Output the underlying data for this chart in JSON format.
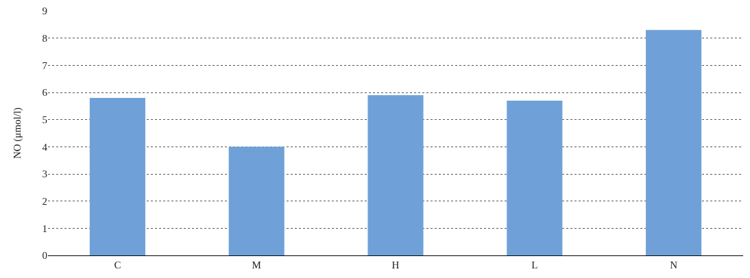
{
  "chart_data": {
    "type": "bar",
    "ylabel": "NO (μmol/l)",
    "categories": [
      "C",
      "M",
      "H",
      "L",
      "N"
    ],
    "values": [
      5.8,
      4.0,
      5.9,
      5.7,
      8.3
    ],
    "color": "#6fa1d8",
    "ylim": [
      0,
      9
    ],
    "yticks": [
      0,
      1,
      2,
      3,
      4,
      5,
      6,
      7,
      8,
      9
    ],
    "grid": "y",
    "legend": false
  }
}
